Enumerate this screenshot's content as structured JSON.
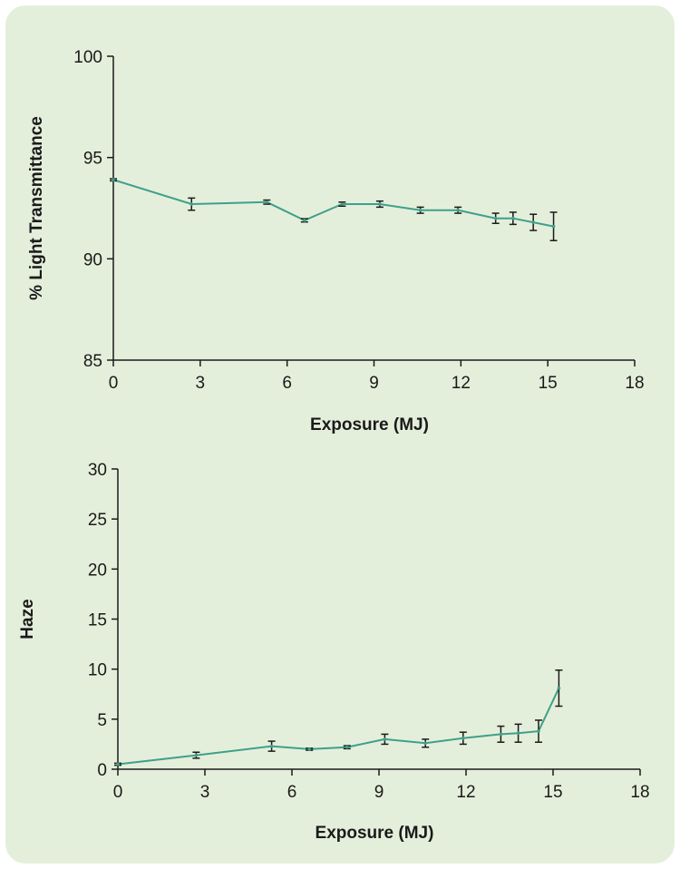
{
  "colors": {
    "panel_bg": "#e4efdb",
    "line": "#3fa08a",
    "axis": "#1a1a1a"
  },
  "chart_data": [
    {
      "type": "line",
      "title": "",
      "xlabel": "Exposure (MJ)",
      "ylabel": "% Light Transmittance",
      "xlim": [
        0,
        18
      ],
      "ylim": [
        85,
        100
      ],
      "x_ticks": [
        0,
        3,
        6,
        9,
        12,
        15,
        18
      ],
      "y_ticks": [
        85,
        90,
        95,
        100
      ],
      "grid": false,
      "x": [
        0,
        2.7,
        5.3,
        6.6,
        7.9,
        9.2,
        10.6,
        11.9,
        13.2,
        13.8,
        14.5,
        15.2
      ],
      "values": [
        93.9,
        92.7,
        92.8,
        91.9,
        92.7,
        92.7,
        92.4,
        92.4,
        92.0,
        92.0,
        91.8,
        91.6
      ],
      "errors": [
        0.05,
        0.3,
        0.1,
        0.08,
        0.1,
        0.15,
        0.15,
        0.15,
        0.25,
        0.3,
        0.4,
        0.7
      ]
    },
    {
      "type": "line",
      "title": "",
      "xlabel": "Exposure (MJ)",
      "ylabel": "Haze",
      "xlim": [
        0,
        18
      ],
      "ylim": [
        0,
        30
      ],
      "x_ticks": [
        0,
        3,
        6,
        9,
        12,
        15,
        18
      ],
      "y_ticks": [
        0,
        5,
        10,
        15,
        20,
        25,
        30
      ],
      "grid": false,
      "x": [
        0,
        2.7,
        5.3,
        6.6,
        7.9,
        9.2,
        10.6,
        11.9,
        13.2,
        13.8,
        14.5,
        15.2
      ],
      "values": [
        0.5,
        1.4,
        2.3,
        2.0,
        2.2,
        3.0,
        2.6,
        3.1,
        3.5,
        3.6,
        3.8,
        8.1
      ],
      "errors": [
        0.1,
        0.3,
        0.5,
        0.1,
        0.15,
        0.5,
        0.4,
        0.6,
        0.8,
        0.9,
        1.1,
        1.8
      ]
    }
  ]
}
